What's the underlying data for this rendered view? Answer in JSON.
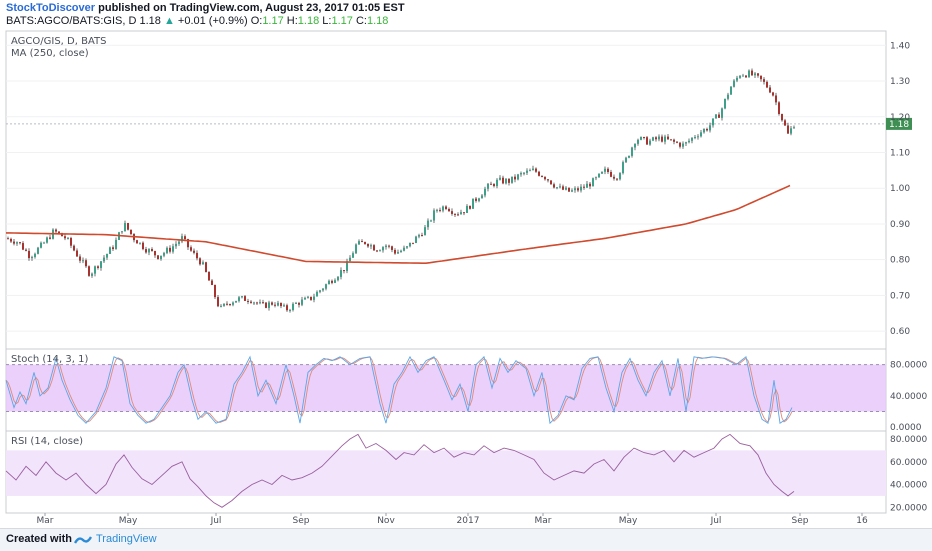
{
  "header": {
    "author": "StockToDiscover",
    "published": "published on TradingView.com, August 23, 2017 01:05 EST",
    "symbol": "BATS:AGCO/BATS:GIS, D",
    "last": "1.18",
    "change": "+0.01 (+0.9%)",
    "o_label": "O:",
    "o": "1.17",
    "h_label": "H:",
    "h": "1.18",
    "l_label": "L:",
    "l": "1.17",
    "c_label": "C:",
    "c": "1.18"
  },
  "footer": {
    "created": "Created with",
    "brand": "TradingView"
  },
  "colors": {
    "up": "#3fa08a",
    "down": "#a8322e",
    "ma": "#d04a2e",
    "stoch_k": "#5aa6e8",
    "stoch_d": "#e08a7a",
    "rsi": "#9b5f9e",
    "band": "#e6c8fa"
  },
  "chart_data": [
    {
      "type": "candlestick",
      "title": "AGCO/GIS, D, BATS",
      "indicator_label": "MA (250, close)",
      "last_price_label": "1.18",
      "ylim": [
        0.55,
        1.44
      ],
      "yticks": [
        "1.40",
        "1.30",
        "1.20",
        "1.10",
        "1.00",
        "0.90",
        "0.80",
        "0.70",
        "0.60"
      ],
      "ytick_values": [
        1.4,
        1.3,
        1.2,
        1.1,
        1.0,
        0.9,
        0.8,
        0.7,
        0.6
      ],
      "xticks": [
        "Mar",
        "May",
        "Jul",
        "Sep",
        "Nov",
        "2017",
        "Mar",
        "May",
        "Jul",
        "Sep",
        "16"
      ],
      "price_path": [
        [
          0,
          0.86
        ],
        [
          12,
          0.85
        ],
        [
          24,
          0.81
        ],
        [
          36,
          0.84
        ],
        [
          48,
          0.88
        ],
        [
          60,
          0.86
        ],
        [
          72,
          0.81
        ],
        [
          84,
          0.76
        ],
        [
          96,
          0.8
        ],
        [
          108,
          0.84
        ],
        [
          118,
          0.9
        ],
        [
          128,
          0.86
        ],
        [
          140,
          0.83
        ],
        [
          152,
          0.81
        ],
        [
          164,
          0.83
        ],
        [
          176,
          0.86
        ],
        [
          186,
          0.82
        ],
        [
          196,
          0.79
        ],
        [
          206,
          0.72
        ],
        [
          214,
          0.66
        ],
        [
          222,
          0.68
        ],
        [
          232,
          0.69
        ],
        [
          244,
          0.69
        ],
        [
          256,
          0.67
        ],
        [
          268,
          0.68
        ],
        [
          280,
          0.66
        ],
        [
          292,
          0.68
        ],
        [
          304,
          0.69
        ],
        [
          316,
          0.72
        ],
        [
          328,
          0.75
        ],
        [
          340,
          0.78
        ],
        [
          350,
          0.84
        ],
        [
          360,
          0.85
        ],
        [
          370,
          0.83
        ],
        [
          380,
          0.84
        ],
        [
          390,
          0.82
        ],
        [
          400,
          0.83
        ],
        [
          410,
          0.86
        ],
        [
          420,
          0.89
        ],
        [
          430,
          0.94
        ],
        [
          440,
          0.95
        ],
        [
          450,
          0.93
        ],
        [
          460,
          0.94
        ],
        [
          470,
          0.97
        ],
        [
          480,
          1.0
        ],
        [
          492,
          1.02
        ],
        [
          504,
          1.02
        ],
        [
          516,
          1.04
        ],
        [
          528,
          1.05
        ],
        [
          540,
          1.03
        ],
        [
          552,
          1.0
        ],
        [
          564,
          0.99
        ],
        [
          576,
          1.0
        ],
        [
          588,
          1.02
        ],
        [
          600,
          1.05
        ],
        [
          610,
          1.03
        ],
        [
          620,
          1.08
        ],
        [
          630,
          1.14
        ],
        [
          642,
          1.13
        ],
        [
          654,
          1.14
        ],
        [
          666,
          1.13
        ],
        [
          678,
          1.12
        ],
        [
          690,
          1.15
        ],
        [
          702,
          1.17
        ],
        [
          714,
          1.21
        ],
        [
          724,
          1.28
        ],
        [
          734,
          1.32
        ],
        [
          744,
          1.32
        ],
        [
          756,
          1.3
        ],
        [
          766,
          1.27
        ],
        [
          774,
          1.21
        ],
        [
          782,
          1.15
        ],
        [
          788,
          1.18
        ]
      ],
      "ma_path": [
        [
          0,
          0.875
        ],
        [
          100,
          0.87
        ],
        [
          200,
          0.85
        ],
        [
          300,
          0.795
        ],
        [
          420,
          0.79
        ],
        [
          520,
          0.83
        ],
        [
          600,
          0.86
        ],
        [
          680,
          0.9
        ],
        [
          730,
          0.94
        ],
        [
          786,
          1.01
        ]
      ]
    },
    {
      "type": "line",
      "title": "Stoch (14, 3, 1)",
      "ylim": [
        -5,
        100
      ],
      "yticks": [
        "80.0000",
        "40.0000",
        "0.0000"
      ],
      "ytick_values": [
        80,
        40,
        0
      ],
      "band": [
        20,
        80
      ],
      "k_path": [
        [
          0,
          60
        ],
        [
          8,
          25
        ],
        [
          14,
          45
        ],
        [
          20,
          30
        ],
        [
          28,
          70
        ],
        [
          34,
          40
        ],
        [
          42,
          50
        ],
        [
          50,
          88
        ],
        [
          56,
          60
        ],
        [
          64,
          35
        ],
        [
          72,
          15
        ],
        [
          80,
          5
        ],
        [
          90,
          20
        ],
        [
          100,
          50
        ],
        [
          108,
          90
        ],
        [
          116,
          85
        ],
        [
          124,
          30
        ],
        [
          132,
          15
        ],
        [
          140,
          5
        ],
        [
          148,
          10
        ],
        [
          156,
          25
        ],
        [
          164,
          40
        ],
        [
          172,
          70
        ],
        [
          178,
          80
        ],
        [
          186,
          35
        ],
        [
          192,
          10
        ],
        [
          200,
          20
        ],
        [
          210,
          5
        ],
        [
          220,
          10
        ],
        [
          228,
          55
        ],
        [
          236,
          70
        ],
        [
          244,
          90
        ],
        [
          252,
          40
        ],
        [
          260,
          60
        ],
        [
          270,
          30
        ],
        [
          280,
          80
        ],
        [
          288,
          40
        ],
        [
          294,
          5
        ],
        [
          302,
          70
        ],
        [
          310,
          80
        ],
        [
          318,
          88
        ],
        [
          326,
          85
        ],
        [
          334,
          90
        ],
        [
          344,
          80
        ],
        [
          354,
          88
        ],
        [
          364,
          90
        ],
        [
          374,
          30
        ],
        [
          380,
          5
        ],
        [
          388,
          55
        ],
        [
          396,
          70
        ],
        [
          404,
          90
        ],
        [
          412,
          70
        ],
        [
          420,
          85
        ],
        [
          428,
          90
        ],
        [
          438,
          60
        ],
        [
          446,
          35
        ],
        [
          454,
          55
        ],
        [
          462,
          20
        ],
        [
          470,
          80
        ],
        [
          478,
          90
        ],
        [
          486,
          50
        ],
        [
          494,
          88
        ],
        [
          502,
          70
        ],
        [
          510,
          85
        ],
        [
          520,
          75
        ],
        [
          528,
          40
        ],
        [
          536,
          70
        ],
        [
          544,
          5
        ],
        [
          552,
          15
        ],
        [
          560,
          40
        ],
        [
          568,
          35
        ],
        [
          576,
          75
        ],
        [
          584,
          88
        ],
        [
          592,
          90
        ],
        [
          600,
          50
        ],
        [
          608,
          20
        ],
        [
          616,
          70
        ],
        [
          624,
          88
        ],
        [
          632,
          60
        ],
        [
          640,
          40
        ],
        [
          648,
          70
        ],
        [
          656,
          85
        ],
        [
          664,
          40
        ],
        [
          672,
          88
        ],
        [
          680,
          20
        ],
        [
          688,
          90
        ],
        [
          696,
          88
        ],
        [
          706,
          90
        ],
        [
          718,
          88
        ],
        [
          730,
          80
        ],
        [
          740,
          90
        ],
        [
          748,
          40
        ],
        [
          756,
          10
        ],
        [
          762,
          5
        ],
        [
          768,
          60
        ],
        [
          774,
          5
        ],
        [
          780,
          10
        ],
        [
          786,
          25
        ]
      ]
    },
    {
      "type": "line",
      "title": "RSI (14, close)",
      "ylim": [
        15,
        87
      ],
      "yticks": [
        "80.0000",
        "60.0000",
        "40.0000",
        "20.0000"
      ],
      "ytick_values": [
        80,
        60,
        40,
        20
      ],
      "band": [
        30,
        70
      ],
      "rsi_path": [
        [
          0,
          52
        ],
        [
          10,
          44
        ],
        [
          20,
          56
        ],
        [
          30,
          48
        ],
        [
          40,
          60
        ],
        [
          50,
          50
        ],
        [
          60,
          44
        ],
        [
          70,
          50
        ],
        [
          80,
          40
        ],
        [
          90,
          32
        ],
        [
          100,
          40
        ],
        [
          110,
          58
        ],
        [
          118,
          66
        ],
        [
          126,
          55
        ],
        [
          136,
          45
        ],
        [
          146,
          40
        ],
        [
          156,
          48
        ],
        [
          166,
          56
        ],
        [
          176,
          60
        ],
        [
          184,
          45
        ],
        [
          192,
          38
        ],
        [
          200,
          30
        ],
        [
          208,
          24
        ],
        [
          216,
          20
        ],
        [
          226,
          26
        ],
        [
          236,
          34
        ],
        [
          246,
          40
        ],
        [
          256,
          44
        ],
        [
          266,
          40
        ],
        [
          276,
          48
        ],
        [
          286,
          44
        ],
        [
          296,
          46
        ],
        [
          306,
          50
        ],
        [
          316,
          56
        ],
        [
          326,
          65
        ],
        [
          336,
          74
        ],
        [
          344,
          80
        ],
        [
          352,
          84
        ],
        [
          360,
          72
        ],
        [
          370,
          76
        ],
        [
          380,
          70
        ],
        [
          390,
          62
        ],
        [
          398,
          68
        ],
        [
          408,
          66
        ],
        [
          418,
          75
        ],
        [
          428,
          68
        ],
        [
          438,
          72
        ],
        [
          448,
          64
        ],
        [
          458,
          68
        ],
        [
          468,
          66
        ],
        [
          478,
          74
        ],
        [
          488,
          68
        ],
        [
          498,
          72
        ],
        [
          508,
          70
        ],
        [
          518,
          66
        ],
        [
          528,
          62
        ],
        [
          538,
          50
        ],
        [
          548,
          44
        ],
        [
          558,
          48
        ],
        [
          568,
          52
        ],
        [
          578,
          50
        ],
        [
          588,
          58
        ],
        [
          598,
          62
        ],
        [
          608,
          52
        ],
        [
          618,
          64
        ],
        [
          628,
          72
        ],
        [
          638,
          68
        ],
        [
          648,
          66
        ],
        [
          658,
          70
        ],
        [
          668,
          60
        ],
        [
          678,
          70
        ],
        [
          688,
          64
        ],
        [
          698,
          68
        ],
        [
          708,
          72
        ],
        [
          716,
          80
        ],
        [
          724,
          84
        ],
        [
          734,
          76
        ],
        [
          744,
          74
        ],
        [
          752,
          66
        ],
        [
          760,
          50
        ],
        [
          768,
          40
        ],
        [
          776,
          34
        ],
        [
          782,
          30
        ],
        [
          788,
          34
        ]
      ]
    }
  ]
}
